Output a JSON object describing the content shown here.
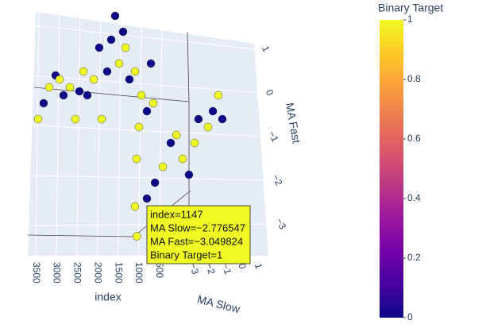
{
  "chart_data": {
    "type": "scatter3d",
    "x_label": "index",
    "y_label": "MA Slow",
    "z_label": "MA Fast",
    "colorbar_title": "Binary Target",
    "colorscale": [
      "#0d0887",
      "#46039f",
      "#7201a8",
      "#9c179e",
      "#bd3786",
      "#d8576b",
      "#ed7953",
      "#fb9f3a",
      "#fdca26",
      "#f0f921"
    ],
    "clim": [
      0,
      1
    ],
    "cticks": [
      0,
      0.2,
      0.4,
      0.6,
      0.8,
      1
    ],
    "x": [
      3443,
      3308,
      3172,
      3017,
      2921,
      2824,
      2669,
      2534,
      2437,
      2340,
      2244,
      2089,
      1954,
      1896,
      1760,
      1663,
      1567,
      1470,
      1373,
      1315,
      1219,
      1083,
      928,
      793,
      696,
      638,
      1083,
      1141,
      1180,
      1147,
      890,
      800,
      700,
      600,
      500,
      420,
      340,
      260,
      200,
      150,
      100,
      60,
      20
    ],
    "y": [
      -3,
      -3,
      -3,
      -3,
      -3,
      -3,
      -3,
      -3,
      -3,
      -3,
      -3,
      -3,
      -3,
      -3,
      -3,
      -3,
      -3,
      -3,
      -3,
      -3,
      -3,
      -3,
      -3,
      -3,
      -3,
      -3,
      -2.8,
      -2.8,
      -2.8,
      -2.776547,
      -2.8,
      -2.58,
      -2.39,
      -2.2,
      -2.12,
      -1.97,
      -1.82,
      -1.7,
      -1.63,
      -1.25,
      -1.11,
      -0.92,
      -0.8
    ],
    "z": [
      -0.1,
      0.3,
      0.7,
      1.0,
      0.9,
      0.5,
      0.7,
      -0.1,
      0.6,
      1.1,
      0.5,
      0.9,
      1.7,
      -0.1,
      1.1,
      1.9,
      2.5,
      1.3,
      2.1,
      1.7,
      0.9,
      1.1,
      0.5,
      0.1,
      1.3,
      0.3,
      -0.3,
      -1.1,
      -2.3,
      -3.049824,
      -2.1,
      -1.7,
      -1.3,
      -0.7,
      -0.5,
      -1.1,
      -1.5,
      -0.7,
      -0.1,
      -0.3,
      0.1,
      0.5,
      -0.1
    ],
    "color_values": [
      1,
      0,
      1,
      0,
      1,
      0,
      1,
      1,
      0,
      1,
      0,
      1,
      0,
      1,
      0,
      0,
      0,
      1,
      0,
      1,
      0,
      1,
      1,
      0,
      0,
      1,
      1,
      1,
      1,
      1,
      0,
      0,
      1,
      0,
      1,
      1,
      0,
      1,
      0,
      1,
      0,
      1,
      0
    ],
    "xticks": [
      500,
      1000,
      1500,
      2000,
      2500,
      3000,
      3500
    ],
    "yticks": [
      {
        "value": -3,
        "label": "−3"
      },
      {
        "value": -2,
        "label": "−2"
      },
      {
        "value": -1,
        "label": "−1"
      },
      0,
      1
    ],
    "zticks": [
      {
        "value": -3,
        "label": "−3"
      },
      {
        "value": -2,
        "label": "−2"
      },
      {
        "value": -1,
        "label": "−1"
      },
      0,
      1
    ],
    "hover": {
      "lines": [
        "index=1147",
        "MA Slow=−2.776547",
        "MA Fast=−3.049824",
        "Binary Target=1"
      ]
    }
  }
}
